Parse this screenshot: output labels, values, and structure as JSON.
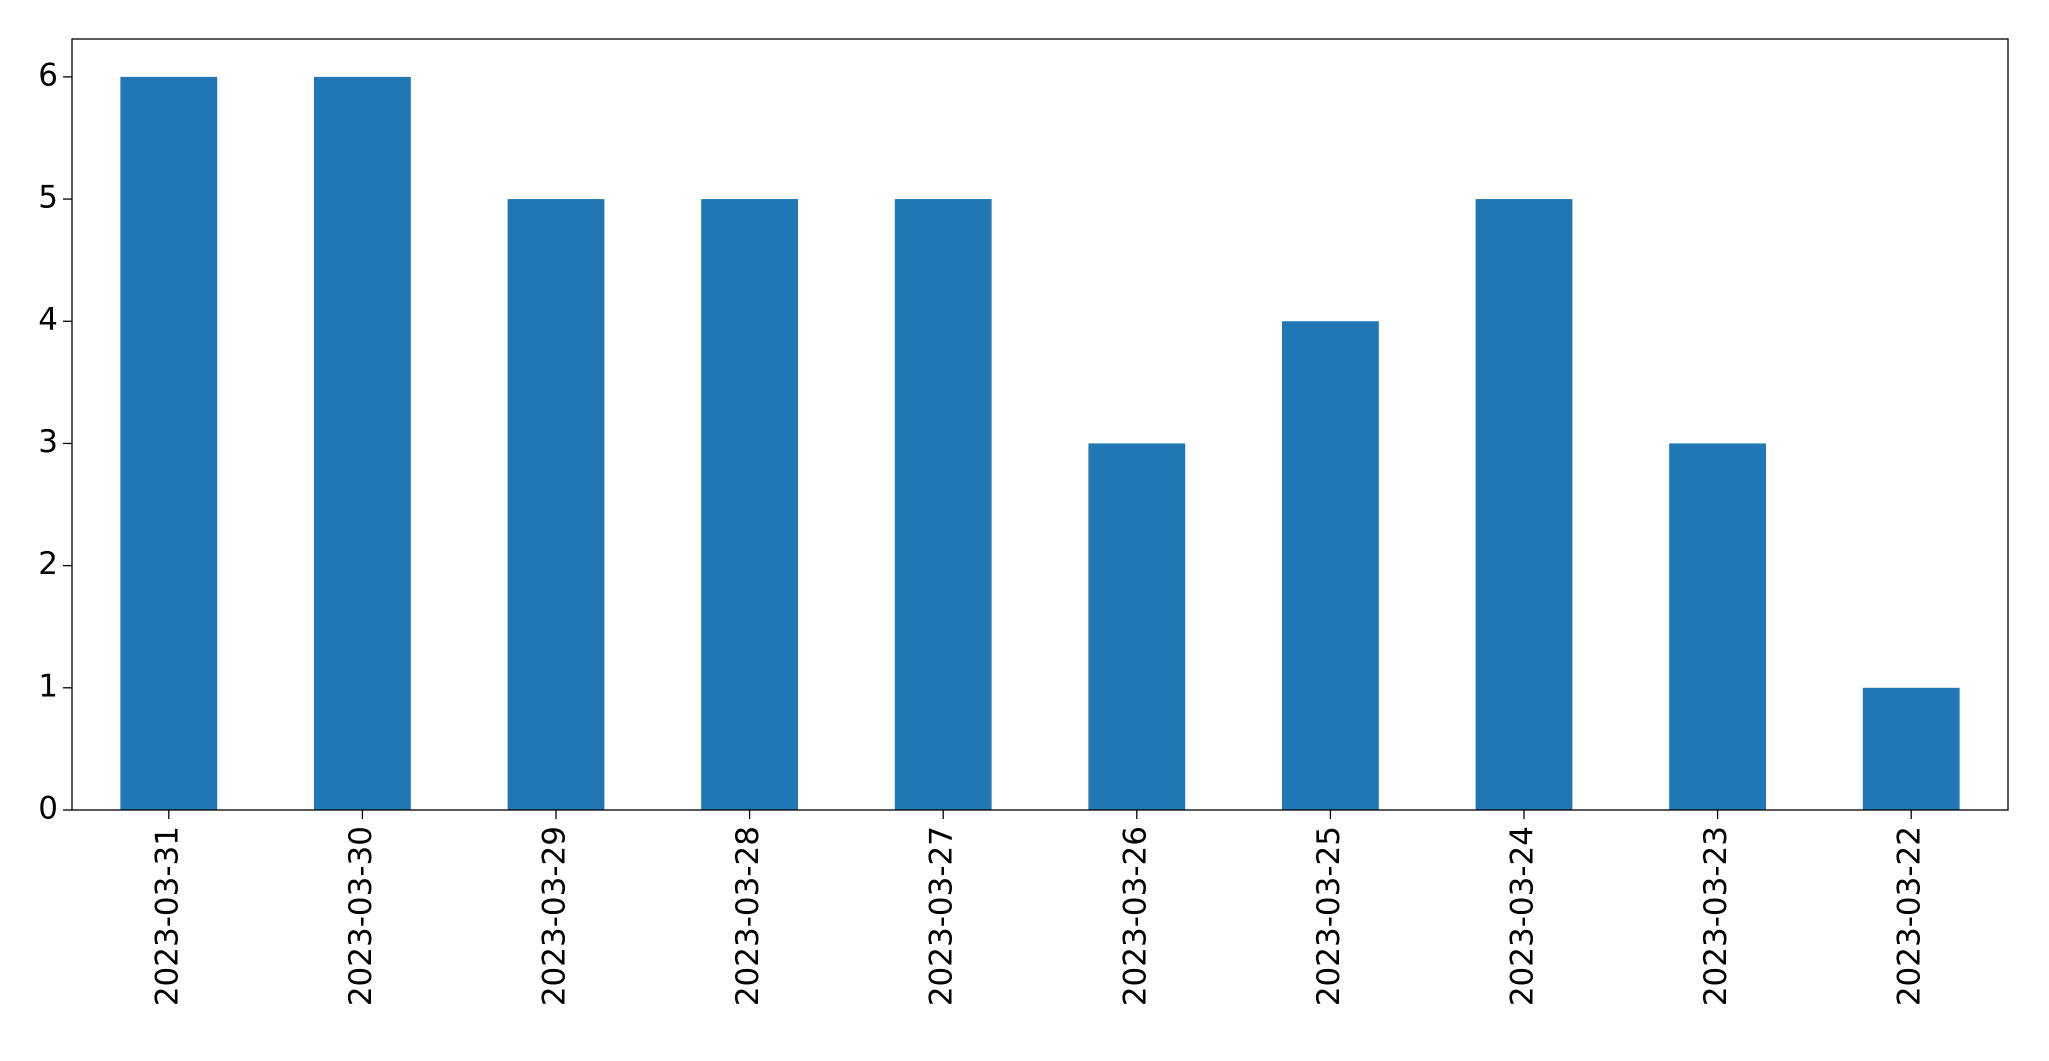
{
  "chart_data": {
    "type": "bar",
    "categories": [
      "2023-03-31",
      "2023-03-30",
      "2023-03-29",
      "2023-03-28",
      "2023-03-27",
      "2023-03-26",
      "2023-03-25",
      "2023-03-24",
      "2023-03-23",
      "2023-03-22"
    ],
    "values": [
      6,
      6,
      5,
      5,
      5,
      3,
      4,
      5,
      3,
      1
    ],
    "color": "#1f77b4",
    "ylim": [
      0,
      6.31
    ],
    "yticks": [
      0,
      1,
      2,
      3,
      4,
      5,
      6
    ],
    "grid": false
  }
}
